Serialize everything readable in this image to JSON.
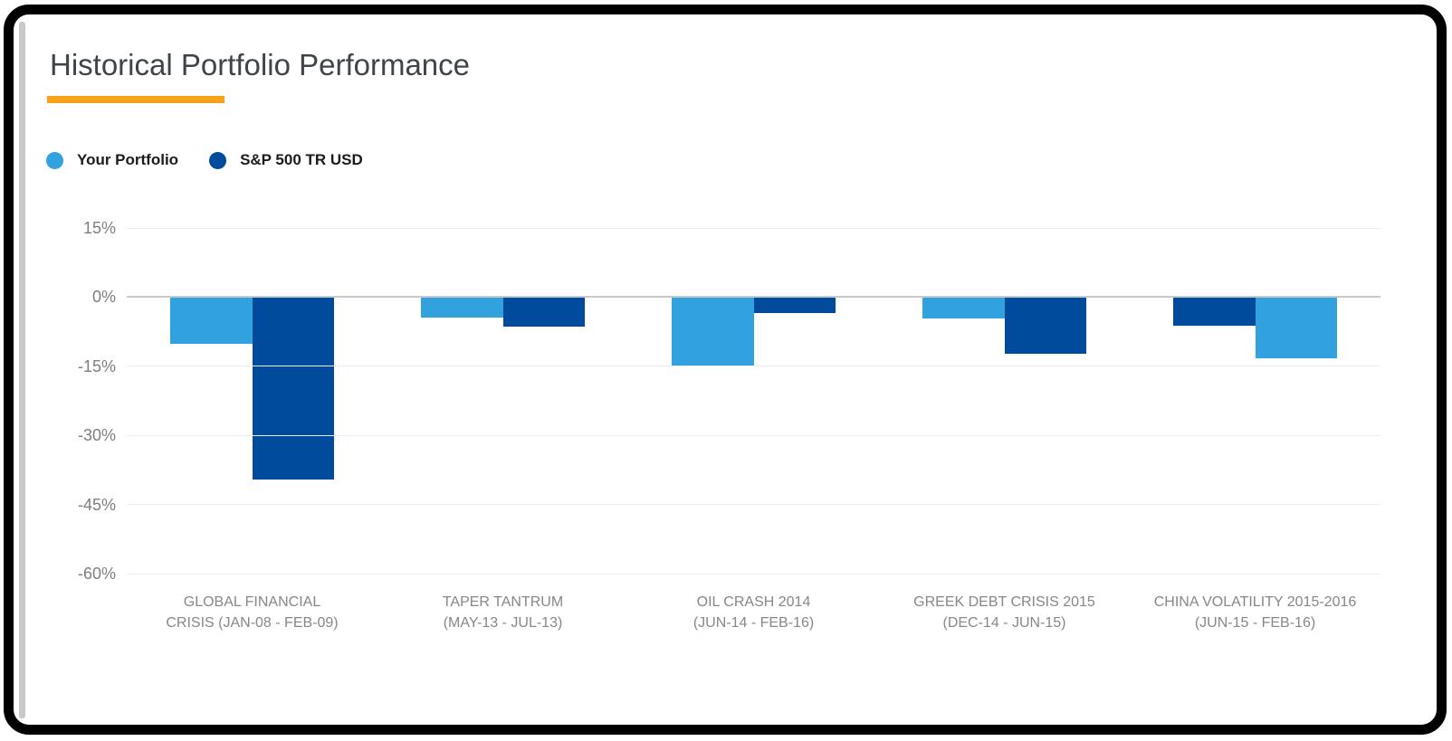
{
  "page": {
    "title": "Historical Portfolio Performance"
  },
  "accent": {
    "title_underline_color": "#F9A11B"
  },
  "legend": [
    {
      "name": "your-portfolio",
      "label": "Your Portfolio",
      "color": "#32A2DE"
    },
    {
      "name": "sp500-tr-usd",
      "label": "S&P 500 TR USD",
      "color": "#004B9C"
    }
  ],
  "chart_data": {
    "type": "bar",
    "title": "Historical Portfolio Performance",
    "xlabel": "",
    "ylabel": "",
    "unit": "%",
    "ylim": [
      -60,
      15
    ],
    "grid": true,
    "legend_position": "top-left",
    "y_ticks": [
      {
        "label": "15%",
        "value": 15
      },
      {
        "label": "0%",
        "value": 0
      },
      {
        "label": "-15%",
        "value": -15
      },
      {
        "label": "-30%",
        "value": -30
      },
      {
        "label": "-45%",
        "value": -45
      },
      {
        "label": "-60%",
        "value": -60
      }
    ],
    "series": [
      {
        "name": "Your Portfolio",
        "color": "#32A2DE"
      },
      {
        "name": "S&P 500 TR USD",
        "color": "#004B9C"
      }
    ],
    "groups": [
      {
        "label_lines": [
          "GLOBAL FINANCIAL",
          "CRISIS (JAN-08 - FEB-09)"
        ],
        "bars": [
          {
            "series": "Your Portfolio",
            "value": -9.9
          },
          {
            "series": "S&P 500 TR USD",
            "value": -39.3
          }
        ]
      },
      {
        "label_lines": [
          "TAPER TANTRUM",
          "(MAY-13 - JUL-13)"
        ],
        "bars": [
          {
            "series": "Your Portfolio",
            "value": -4.2
          },
          {
            "series": "S&P 500 TR USD",
            "value": -6.3
          }
        ]
      },
      {
        "label_lines": [
          "OIL CRASH 2014",
          "(JUN-14 - FEB-16)"
        ],
        "bars": [
          {
            "series": "Your Portfolio",
            "value": -14.7
          },
          {
            "series": "S&P 500 TR USD",
            "value": -3.2
          }
        ]
      },
      {
        "label_lines": [
          "GREEK DEBT CRISIS 2015",
          "(DEC-14 - JUN-15)"
        ],
        "bars": [
          {
            "series": "Your Portfolio",
            "value": -4.5
          },
          {
            "series": "S&P 500 TR USD",
            "value": -12.0
          }
        ]
      },
      {
        "label_lines": [
          "CHINA VOLATILITY 2015-2016",
          "(JUN-15 - FEB-16)"
        ],
        "bars": [
          {
            "series": "S&P 500 TR USD",
            "value": -6.1
          },
          {
            "series": "Your Portfolio",
            "value": -13.1
          }
        ]
      }
    ]
  }
}
